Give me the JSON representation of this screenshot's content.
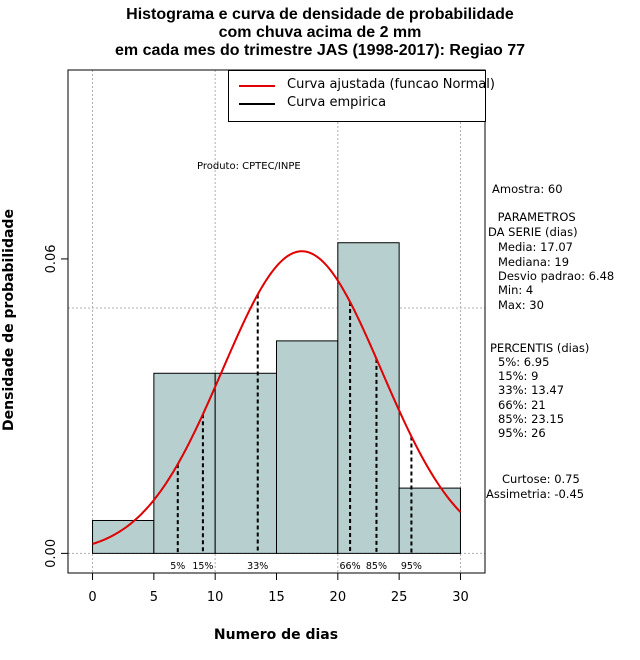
{
  "chart_data": {
    "type": "bar",
    "title_lines": [
      "Histograma e curva de densidade de probabilidade",
      "com chuva acima de 2 mm",
      "em cada mes do trimestre JAS (1998-2017): Regiao 77"
    ],
    "xlabel": "Numero de dias",
    "ylabel": "Densidade de probabilidade",
    "xlim": [
      -2,
      32
    ],
    "ylim": [
      -0.004,
      0.0985
    ],
    "x_ticks": [
      0,
      5,
      10,
      15,
      20,
      25,
      30
    ],
    "y_ticks": [
      {
        "value": 0.0,
        "label": "0.00"
      },
      {
        "value": 0.06,
        "label": "0.06"
      }
    ],
    "grid_y": [
      0.0,
      0.05,
      0.1
    ],
    "grid_x": [
      0,
      10,
      20,
      30
    ],
    "bins": [
      {
        "from": 0,
        "to": 5,
        "density": 0.0067
      },
      {
        "from": 5,
        "to": 10,
        "density": 0.0367
      },
      {
        "from": 10,
        "to": 15,
        "density": 0.0367
      },
      {
        "from": 15,
        "to": 20,
        "density": 0.0433
      },
      {
        "from": 20,
        "to": 25,
        "density": 0.0633
      },
      {
        "from": 25,
        "to": 30,
        "density": 0.0133
      }
    ],
    "normal_fit": {
      "mean": 17.07,
      "sd": 6.48,
      "x_from": 0,
      "x_to": 30
    },
    "percentile_lines": [
      {
        "label": "5%",
        "value": 6.95
      },
      {
        "label": "15%",
        "value": 9
      },
      {
        "label": "33%",
        "value": 13.47
      },
      {
        "label": "66%",
        "value": 21
      },
      {
        "label": "85%",
        "value": 23.15
      },
      {
        "label": "95%",
        "value": 26
      }
    ],
    "colors": {
      "bar_fill": "#b7cfcf",
      "curve": "#e00000",
      "grid": "#b0b0b0"
    },
    "legend": [
      {
        "label": "Curva ajustada (funcao Normal)",
        "color": "#e00000"
      },
      {
        "label": "Curva empirica",
        "color": "#000000"
      }
    ],
    "annotation": "Produto: CPTEC/INPE"
  },
  "stats": {
    "sample": "Amostra: 60",
    "params_header": [
      " PARAMETROS",
      "DA SERIE (dias)"
    ],
    "params": [
      "Media: 17.07",
      "Mediana: 19",
      "Desvio padrao: 6.48",
      "Min: 4",
      "Max: 30"
    ],
    "percentis_header": "PERCENTIS (dias)",
    "percentis": [
      "5%: 6.95",
      "15%: 9",
      "33%: 13.47",
      "66%: 21",
      "85%: 23.15",
      "95%: 26"
    ],
    "shape": [
      "Curtose: 0.75",
      "Assimetria: -0.45"
    ]
  }
}
